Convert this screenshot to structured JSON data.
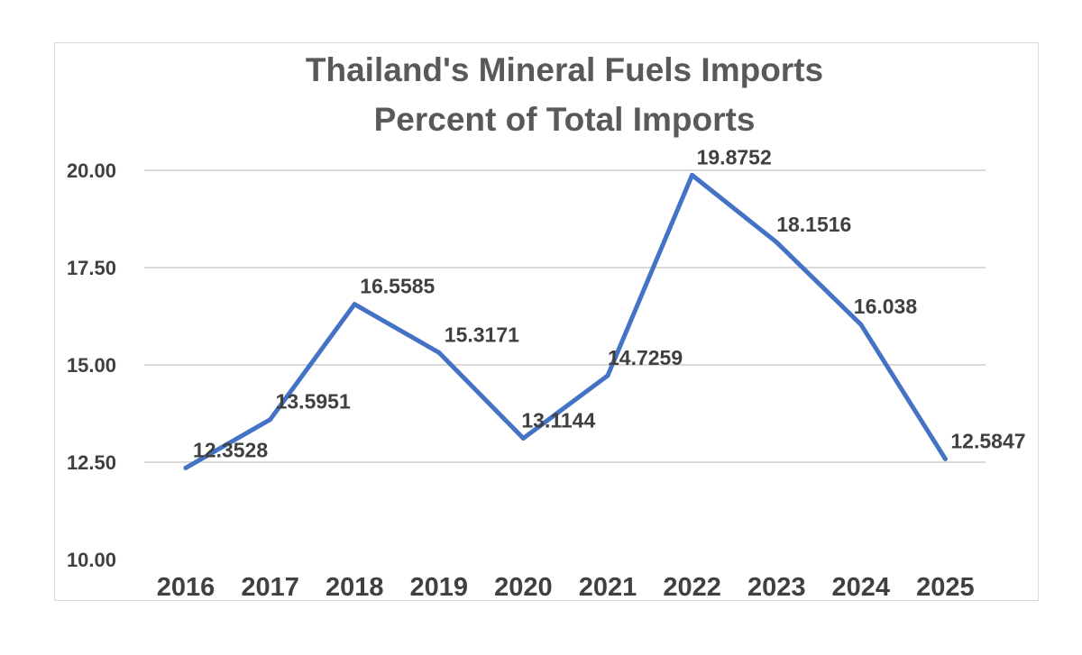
{
  "chart_data": {
    "type": "line",
    "title": "Thailand's Mineral Fuels Imports",
    "subtitle": "Percent of Total Imports",
    "xlabel": "",
    "ylabel": "",
    "categories": [
      "2016",
      "2017",
      "2018",
      "2019",
      "2020",
      "2021",
      "2022",
      "2023",
      "2024",
      "2025"
    ],
    "series": [
      {
        "values": [
          12.3528,
          13.5951,
          16.5585,
          15.3171,
          13.1144,
          14.7259,
          19.8752,
          18.1516,
          16.038,
          12.5847
        ],
        "labels": [
          "12.3528",
          "13.5951",
          "16.5585",
          "15.3171",
          "13.1144",
          "14.7259",
          "19.8752",
          "18.1516",
          "16.038",
          "12.5847"
        ],
        "color": "#4472c4"
      }
    ],
    "ylim": [
      10,
      20
    ],
    "yticks": [
      "10.00",
      "12.50",
      "15.00",
      "17.50",
      "20.00"
    ],
    "grid": true,
    "legend": "none"
  }
}
